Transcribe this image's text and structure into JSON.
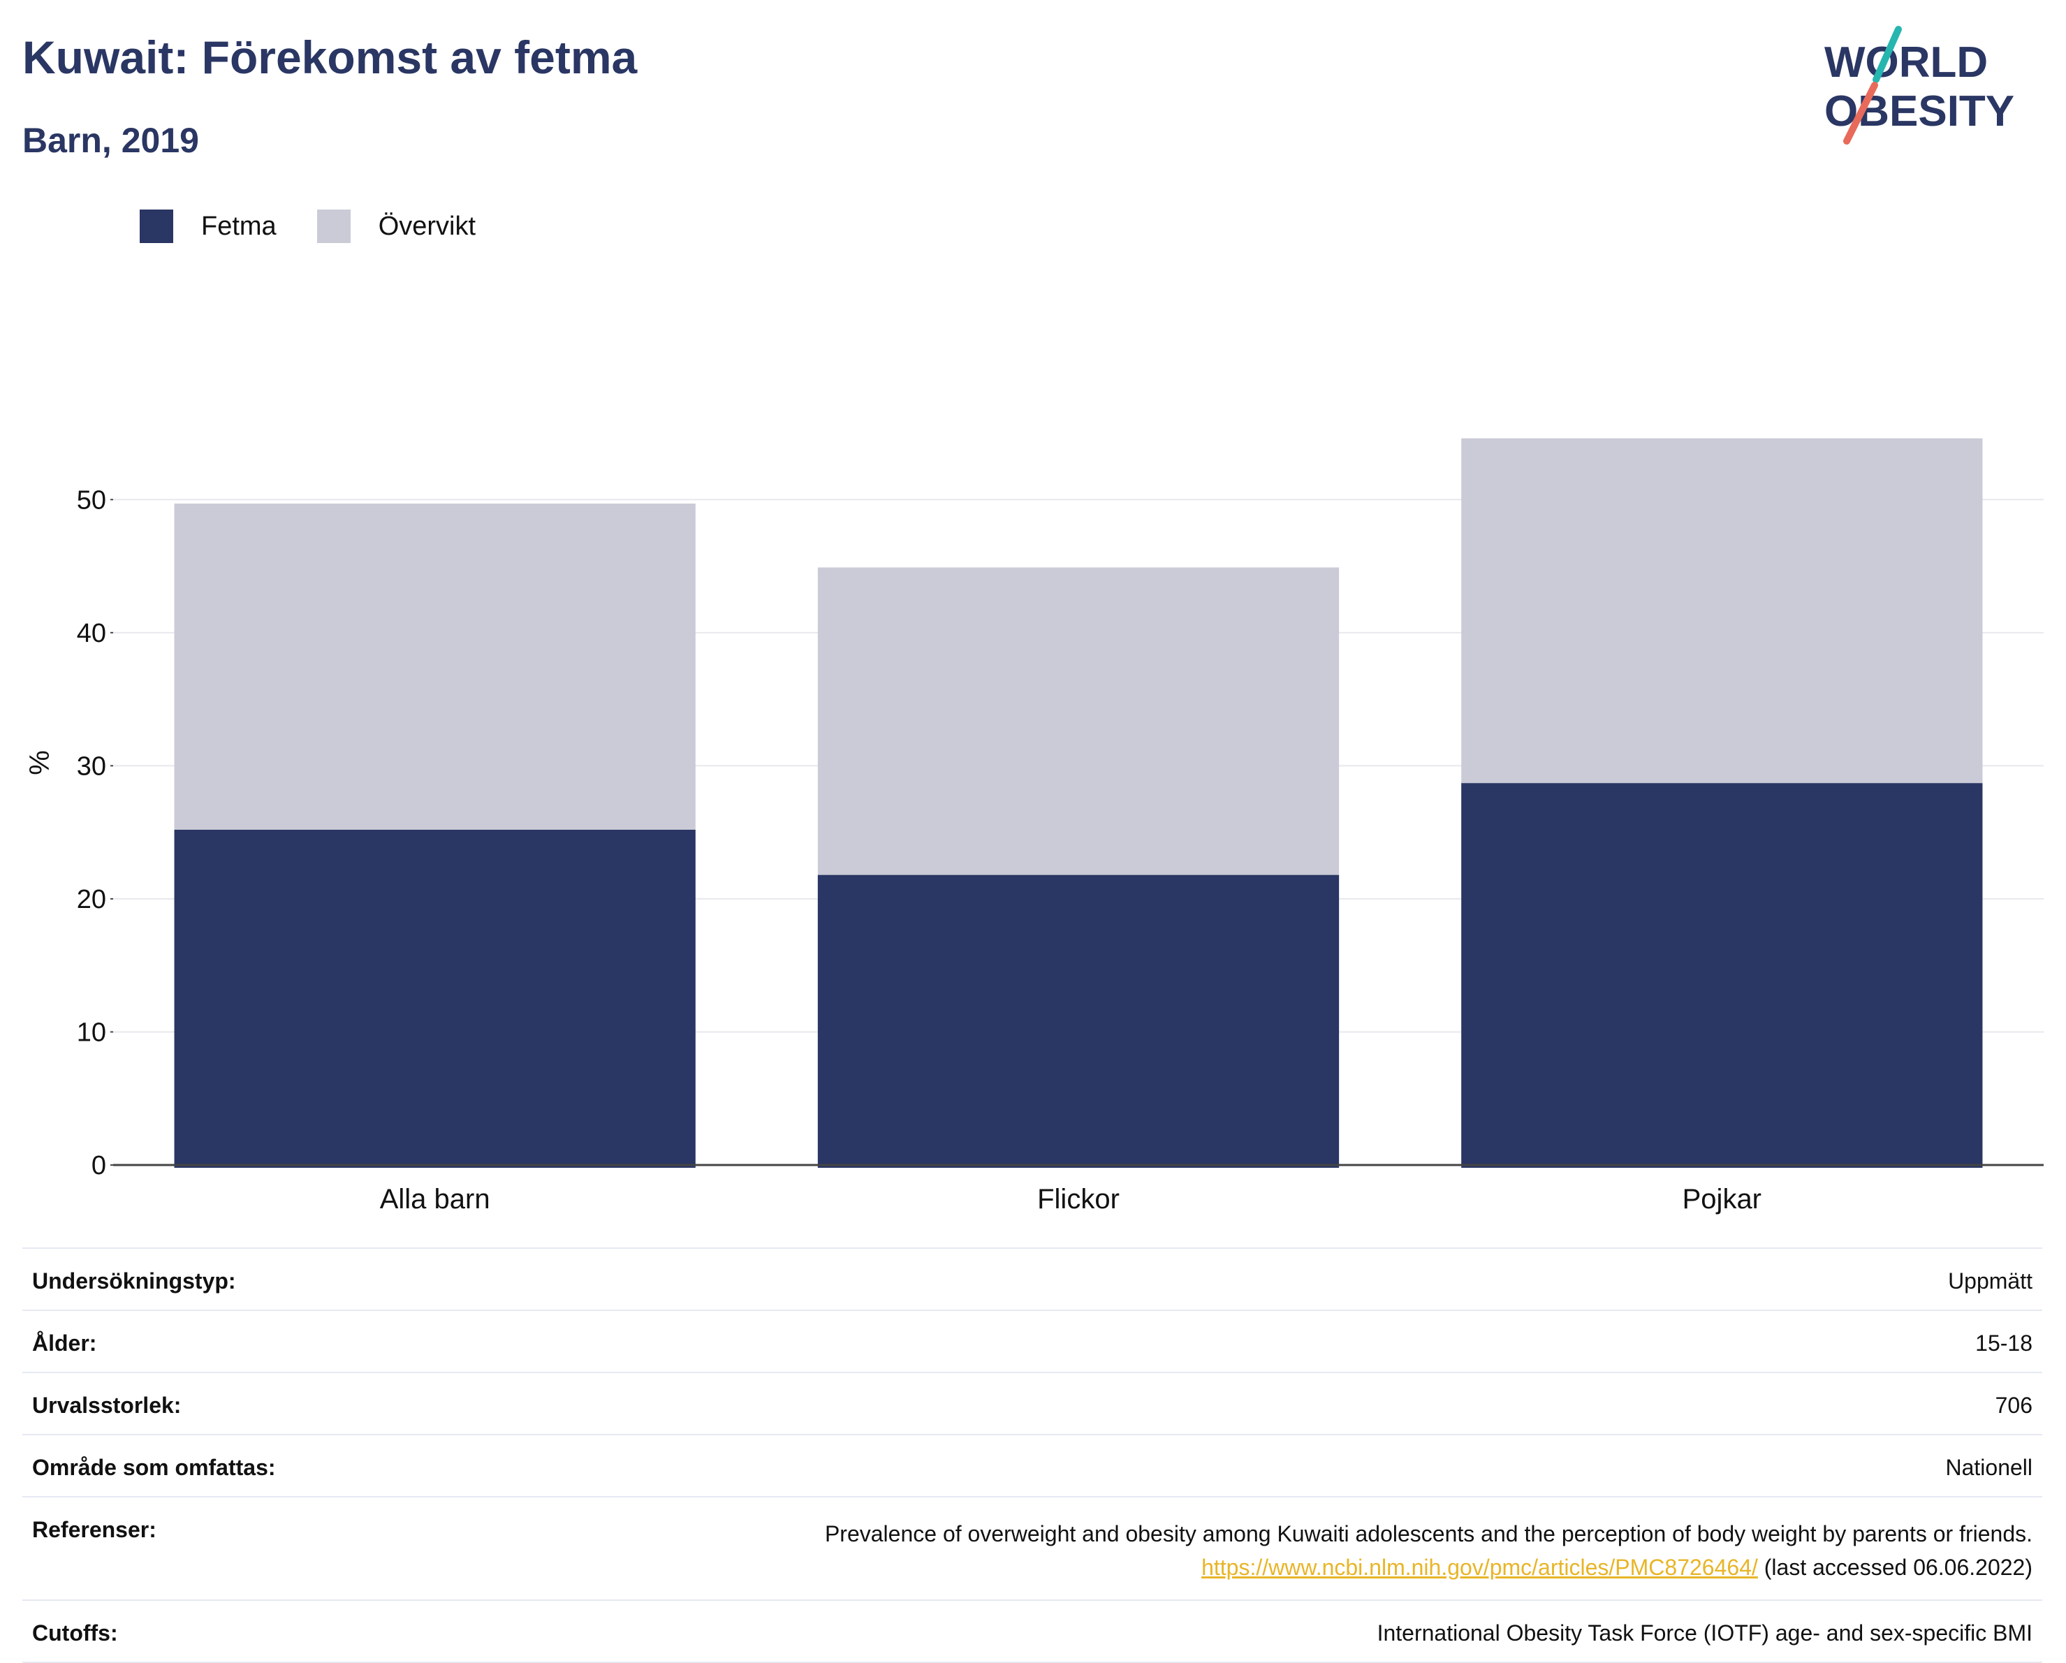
{
  "header": {
    "title": "Kuwait: Förekomst av fetma",
    "subtitle": "Barn, 2019",
    "logo_line1": "WORLD",
    "logo_line2": "OBESITY"
  },
  "colors": {
    "fetma": "#2a3663",
    "overvikt": "#cacbd6",
    "title": "#2a3663",
    "logo_teal": "#27b5b0",
    "logo_coral": "#e86a5a",
    "link": "#e8b528"
  },
  "chart_data": {
    "type": "bar",
    "stacked": true,
    "categories": [
      "Alla barn",
      "Flickor",
      "Pojkar"
    ],
    "series": [
      {
        "name": "Fetma",
        "values": [
          25.2,
          21.8,
          28.7
        ]
      },
      {
        "name": "Övervikt",
        "values": [
          24.5,
          23.1,
          25.9
        ]
      }
    ],
    "ylabel": "%",
    "ylim": [
      0,
      55
    ],
    "yticks": [
      0,
      10,
      20,
      30,
      40,
      50
    ],
    "grid": true,
    "legend": "top-left"
  },
  "info": [
    {
      "key": "Undersökningstyp:",
      "value": "Uppmätt"
    },
    {
      "key": "Ålder:",
      "value": "15-18"
    },
    {
      "key": "Urvalsstorlek:",
      "value": "706"
    },
    {
      "key": "Område som omfattas:",
      "value": "Nationell"
    },
    {
      "key": "Referenser:",
      "value": "Prevalence of overweight and obesity among Kuwaiti adolescents and the perception of body weight by parents or friends.",
      "link": "https://www.ncbi.nlm.nih.gov/pmc/articles/PMC8726464/",
      "note": " (last accessed 06.06.2022)"
    },
    {
      "key": "Cutoffs:",
      "value": "International Obesity Task Force (IOTF) age- and sex-specific BMI"
    }
  ]
}
